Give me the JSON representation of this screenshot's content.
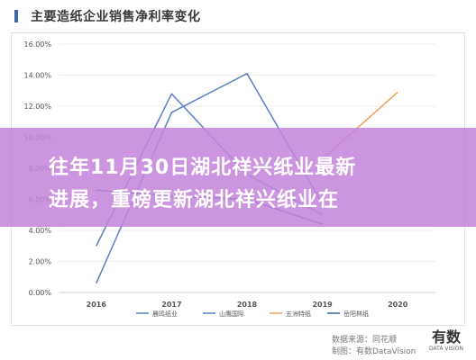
{
  "header": {
    "title": "主要造纸企业销售净利率变化"
  },
  "chart_data": {
    "type": "line",
    "title": "主要造纸企业销售净利率变化",
    "xlabel": "",
    "ylabel": "",
    "x": [
      "2016",
      "2017",
      "2018",
      "2019",
      "2020"
    ],
    "ylim": [
      0,
      16
    ],
    "yticks": [
      "0.00%",
      "2.00%",
      "4.00%",
      "6.00%",
      "8.00%",
      "10.00%",
      "12.00%",
      "14.00%",
      "16.00%"
    ],
    "grid": true,
    "legend_position": "bottom",
    "series": [
      {
        "name": "晨鸣纸业",
        "color": "#5b7fc4",
        "values": [
          3.0,
          12.8,
          7.6,
          5.0,
          null
        ]
      },
      {
        "name": "山鹰国际",
        "color": "#5b7fc4",
        "values": [
          0.6,
          11.6,
          14.1,
          5.7,
          null
        ]
      },
      {
        "name": "五洲特纸",
        "color": "#f0a05a",
        "values": [
          null,
          null,
          null,
          8.6,
          12.9
        ]
      },
      {
        "name": "岳阳林纸",
        "color": "#3f5fa6",
        "values": [
          6.6,
          6.2,
          6.0,
          4.4,
          null
        ]
      }
    ]
  },
  "banner": {
    "line1": "往年11月30日湖北祥兴纸业最新",
    "line2": "进展，重磅更新湖北祥兴纸业在"
  },
  "footer": {
    "source_line1": "数据来源：同花顺",
    "source_line2": "制图：有数DataVision",
    "logo_main": "有数",
    "logo_sub": "DATA VISION"
  }
}
